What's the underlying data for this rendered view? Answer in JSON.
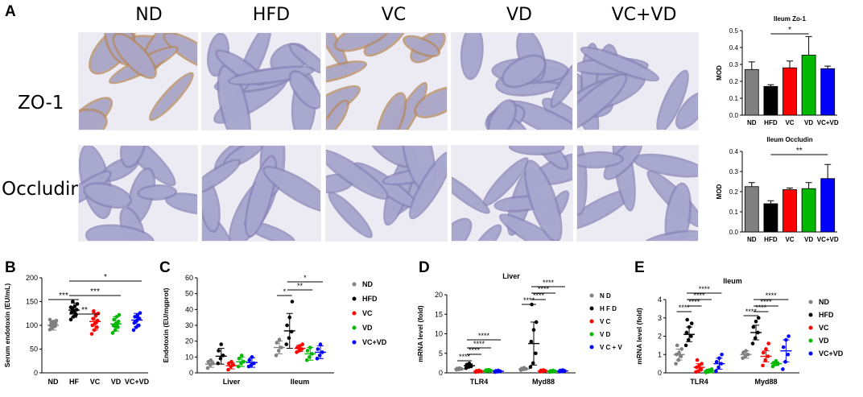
{
  "panels": {
    "A": {
      "label": "A",
      "columns": [
        "ND",
        "HFD",
        "VC",
        "VD",
        "VC+VD"
      ],
      "rows": [
        "ZO-1",
        "Occludin"
      ]
    },
    "B": {
      "label": "B"
    },
    "C": {
      "label": "C"
    },
    "D": {
      "label": "D"
    },
    "E": {
      "label": "E"
    }
  },
  "colors": {
    "ND": "#808080",
    "HFD": "#000000",
    "VC": "#ff0000",
    "VD": "#00b800",
    "VCVD": "#0000ff"
  },
  "chart_data": [
    {
      "id": "zo1",
      "type": "bar",
      "title": "Ileum Zo-1",
      "ylabel": "MOD",
      "categories": [
        "ND",
        "HFD",
        "VC",
        "VD",
        "VC+VD"
      ],
      "values": [
        0.27,
        0.17,
        0.28,
        0.355,
        0.275
      ],
      "errors": [
        0.045,
        0.01,
        0.04,
        0.11,
        0.015
      ],
      "ylim": [
        0,
        0.5
      ],
      "yticks": [
        "0.0",
        "0.1",
        "0.2",
        "0.3",
        "0.4",
        "0.5"
      ],
      "sig": [
        {
          "from": 1,
          "to": 3,
          "label": "*"
        }
      ]
    },
    {
      "id": "occludin",
      "type": "bar",
      "title": "Ileum Occludin",
      "ylabel": "MOD",
      "categories": [
        "ND",
        "HFD",
        "VC",
        "VD",
        "VC+VD"
      ],
      "values": [
        0.225,
        0.14,
        0.21,
        0.215,
        0.265
      ],
      "errors": [
        0.02,
        0.015,
        0.008,
        0.03,
        0.07
      ],
      "ylim": [
        0,
        0.4
      ],
      "yticks": [
        "0.0",
        "0.1",
        "0.2",
        "0.3",
        "0.4"
      ],
      "sig": [
        {
          "from": 1,
          "to": 4,
          "label": "**"
        }
      ]
    },
    {
      "id": "B",
      "type": "scatter",
      "ylabel": "Serum endotoxin (EU/mL)",
      "categories": [
        "ND",
        "HF",
        "VC",
        "VD",
        "VC+VD"
      ],
      "means": [
        100,
        132,
        108,
        103,
        111
      ],
      "sd": [
        10,
        15,
        18,
        15,
        14
      ],
      "points": [
        [
          91,
          95,
          98,
          100,
          102,
          104,
          106,
          108,
          110,
          97,
          103,
          112
        ],
        [
          112,
          118,
          122,
          127,
          130,
          133,
          136,
          140,
          145,
          150,
          125,
          138
        ],
        [
          82,
          90,
          96,
          100,
          104,
          110,
          114,
          120,
          125,
          130,
          106
        ],
        [
          84,
          90,
          96,
          100,
          104,
          108,
          112,
          118,
          122,
          98,
          102
        ],
        [
          90,
          96,
          100,
          105,
          110,
          114,
          118,
          122,
          126,
          108,
          116
        ]
      ],
      "ylim": [
        0,
        200
      ],
      "yticks": [
        "0",
        "50",
        "100",
        "150",
        "200"
      ],
      "sig": [
        {
          "from": 0,
          "to": 1,
          "label": "***"
        },
        {
          "from": 1,
          "to": 2,
          "label": "**"
        },
        {
          "from": 1,
          "to": 3,
          "label": "***"
        },
        {
          "from": 1,
          "to": 4,
          "label": "*"
        }
      ]
    },
    {
      "id": "C",
      "type": "scatter",
      "ylabel": "Endotoxin (EU/mgprot)",
      "groups": [
        "Liver",
        "Ileum"
      ],
      "legend": [
        "ND",
        "HFD",
        "VC",
        "VD",
        "VC+VD"
      ],
      "means": [
        [
          5.5,
          10.5,
          4.5,
          7,
          6.5
        ],
        [
          16,
          26.5,
          15.5,
          12,
          13
        ]
      ],
      "sd": [
        [
          2,
          5,
          2,
          3,
          3
        ],
        [
          4,
          11,
          2,
          4,
          4
        ]
      ],
      "points": [
        [
          [
            3,
            5,
            6,
            7,
            8
          ],
          [
            6,
            9,
            11,
            14,
            18
          ],
          [
            2,
            4,
            5,
            6,
            7
          ],
          [
            4,
            6,
            7,
            9,
            11
          ],
          [
            4,
            5,
            6,
            8,
            10
          ]
        ],
        [
          [
            11,
            14,
            16,
            19,
            21
          ],
          [
            18,
            22,
            26,
            30,
            35,
            45
          ],
          [
            13,
            14,
            15,
            16,
            17,
            18
          ],
          [
            8,
            10,
            12,
            14,
            16
          ],
          [
            9,
            11,
            13,
            15,
            18
          ]
        ]
      ],
      "ylim": [
        0,
        60
      ],
      "yticks": [
        "0",
        "10",
        "20",
        "30",
        "40",
        "50",
        "60"
      ],
      "sig": [
        {
          "group": 1,
          "from": 0,
          "to": 1,
          "label": "*"
        },
        {
          "group": 1,
          "from": 1,
          "to": 3,
          "label": "**"
        },
        {
          "group": 1,
          "from": 1,
          "to": 4,
          "label": "*"
        }
      ]
    },
    {
      "id": "D",
      "type": "scatter",
      "title": "Liver",
      "ylabel": "mRNA level (fold)",
      "groups": [
        "TLR4",
        "Myd88"
      ],
      "legend": [
        "N D",
        "H F D",
        "V C",
        "V D",
        "V C + V D"
      ],
      "means": [
        [
          1,
          1.8,
          0.4,
          0.6,
          0.4
        ],
        [
          1,
          7.5,
          0.5,
          0.4,
          0.5
        ]
      ],
      "sd": [
        [
          0.2,
          0.5,
          0.2,
          0.2,
          0.2
        ],
        [
          0.3,
          5.5,
          0.2,
          0.2,
          0.2
        ]
      ],
      "points": [
        [
          [
            0.8,
            0.9,
            1,
            1.1,
            1.2
          ],
          [
            1.2,
            1.5,
            1.8,
            2.1,
            2.4
          ],
          [
            0.2,
            0.3,
            0.4,
            0.5,
            0.6
          ],
          [
            0.4,
            0.5,
            0.6,
            0.7,
            0.8
          ],
          [
            0.2,
            0.3,
            0.4,
            0.5,
            0.6
          ]
        ],
        [
          [
            0.7,
            0.9,
            1,
            1.1,
            1.3
          ],
          [
            1.5,
            2.5,
            5,
            8,
            11,
            13,
            17.5
          ],
          [
            0.3,
            0.4,
            0.5,
            0.6,
            0.7
          ],
          [
            0.2,
            0.3,
            0.4,
            0.5,
            0.6
          ],
          [
            0.3,
            0.4,
            0.5,
            0.6,
            0.7
          ]
        ]
      ],
      "ylim": [
        0,
        20
      ],
      "yticks": [
        "0",
        "5",
        "10",
        "15",
        "20"
      ],
      "sig": [
        {
          "group": 0,
          "from": 0,
          "to": 1,
          "label": "****"
        },
        {
          "group": 0,
          "from": 1,
          "to": 2,
          "label": "****"
        },
        {
          "group": 0,
          "from": 1,
          "to": 3,
          "label": "****"
        },
        {
          "group": 0,
          "from": 1,
          "to": 4,
          "label": "****"
        },
        {
          "group": 1,
          "from": 0,
          "to": 1,
          "label": "****"
        },
        {
          "group": 1,
          "from": 1,
          "to": 2,
          "label": "****"
        },
        {
          "group": 1,
          "from": 1,
          "to": 3,
          "label": "****"
        },
        {
          "group": 1,
          "from": 1,
          "to": 4,
          "label": "****"
        }
      ]
    },
    {
      "id": "E",
      "type": "scatter",
      "title": "Ileum",
      "ylabel": "mRNA level (fold)",
      "groups": [
        "TLR4",
        "Myd88"
      ],
      "legend": [
        "ND",
        "HFD",
        "VC",
        "VD",
        "VC+VD"
      ],
      "means": [
        [
          1,
          2.1,
          0.3,
          0.1,
          0.5
        ],
        [
          1,
          2.2,
          0.9,
          0.5,
          1.2
        ]
      ],
      "sd": [
        [
          0.3,
          0.4,
          0.2,
          0.1,
          0.3
        ],
        [
          0.2,
          0.4,
          0.3,
          0.1,
          0.6
        ]
      ],
      "points": [
        [
          [
            0.5,
            0.7,
            0.9,
            1,
            1.1,
            1.3,
            1.5
          ],
          [
            1.5,
            1.8,
            2,
            2.2,
            2.5,
            2.7,
            2.9
          ],
          [
            0.05,
            0.1,
            0.2,
            0.3,
            0.4,
            0.5,
            0.7
          ],
          [
            0.02,
            0.05,
            0.08,
            0.1,
            0.15,
            0.2
          ],
          [
            0.1,
            0.3,
            0.5,
            0.6,
            0.8,
            1
          ]
        ],
        [
          [
            0.8,
            0.9,
            1,
            1.1,
            1.2
          ],
          [
            1.6,
            1.9,
            2.2,
            2.5,
            2.8,
            3
          ],
          [
            0.4,
            0.7,
            0.9,
            1.1,
            1.3,
            1.6
          ],
          [
            0.35,
            0.45,
            0.5,
            0.55,
            0.65
          ],
          [
            0.2,
            0.6,
            1,
            1.4,
            1.8,
            2
          ]
        ]
      ],
      "ylim": [
        0,
        4
      ],
      "yticks": [
        "0",
        "1",
        "2",
        "3",
        "4"
      ],
      "sig": [
        {
          "group": 0,
          "from": 0,
          "to": 1,
          "label": "****"
        },
        {
          "group": 0,
          "from": 1,
          "to": 2,
          "label": "****"
        },
        {
          "group": 0,
          "from": 1,
          "to": 3,
          "label": "****"
        },
        {
          "group": 0,
          "from": 1,
          "to": 4,
          "label": "****"
        },
        {
          "group": 1,
          "from": 0,
          "to": 1,
          "label": "****"
        },
        {
          "group": 1,
          "from": 1,
          "to": 2,
          "label": "****"
        },
        {
          "group": 1,
          "from": 1,
          "to": 3,
          "label": "****"
        },
        {
          "group": 1,
          "from": 1,
          "to": 4,
          "label": "****"
        }
      ]
    }
  ]
}
